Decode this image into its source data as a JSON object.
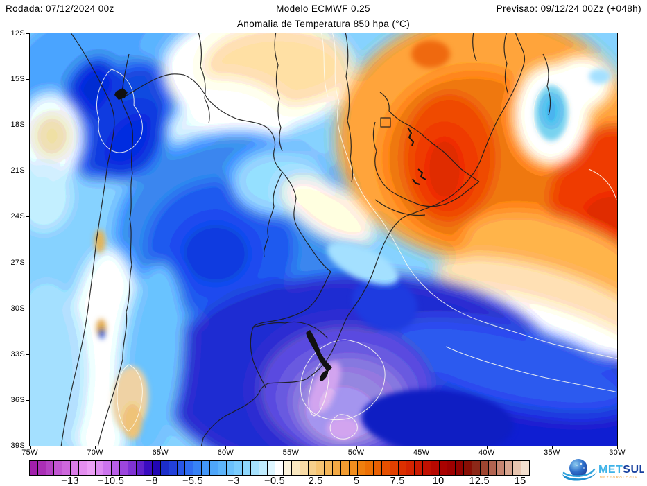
{
  "header": {
    "left": "Rodada: 07/12/2024 00z",
    "center": "Modelo ECMWF 0.25",
    "right": "Previsao: 09/12/24 00Zz (+048h)"
  },
  "title": "Anomalia de Temperatura 850 hpa (°C)",
  "map": {
    "projection": "lat-lon grid, 12S-39S / 75W-30W",
    "lat_labels": [
      "12S",
      "15S",
      "18S",
      "21S",
      "24S",
      "27S",
      "30S",
      "33S",
      "36S",
      "39S"
    ],
    "lon_labels": [
      "75W",
      "70W",
      "65W",
      "60W",
      "55W",
      "50W",
      "45W",
      "40W",
      "35W",
      "30W"
    ],
    "base_color": "#86CCF5",
    "field_blobs": [
      [
        1,
        120,
        80,
        155,
        115,
        0,
        "#4AA0F2"
      ],
      [
        1,
        215,
        22,
        60,
        45,
        0,
        "#5FB0F4"
      ],
      [
        1,
        130,
        125,
        58,
        95,
        38,
        "#1B48E0"
      ],
      [
        1,
        88,
        80,
        30,
        46,
        30,
        "#0A2CD4"
      ],
      [
        1,
        145,
        158,
        40,
        56,
        35,
        "#0E34D8"
      ],
      [
        1,
        245,
        140,
        48,
        36,
        0,
        "#D8F0FC"
      ],
      [
        1,
        30,
        150,
        50,
        66,
        0,
        "#EEF8FD"
      ],
      [
        1,
        32,
        148,
        26,
        31,
        0,
        "#EFD7A6"
      ],
      [
        1,
        20,
        235,
        40,
        50,
        0,
        "#C6EAFB"
      ],
      [
        1,
        330,
        55,
        140,
        86,
        0,
        "#FDFAF2"
      ],
      [
        1,
        358,
        48,
        105,
        56,
        0,
        "#F2D9A8"
      ],
      [
        1,
        300,
        112,
        82,
        46,
        15,
        "#FDFAF2"
      ],
      [
        1,
        660,
        150,
        218,
        178,
        0,
        "#F4A03C"
      ],
      [
        1,
        640,
        180,
        132,
        126,
        0,
        "#F07B14"
      ],
      [
        1,
        605,
        180,
        66,
        92,
        0,
        "#E9480A"
      ],
      [
        1,
        598,
        196,
        36,
        56,
        0,
        "#E23305"
      ],
      [
        1,
        836,
        245,
        86,
        112,
        10,
        "#E83F08"
      ],
      [
        1,
        840,
        276,
        50,
        46,
        0,
        "#E02E04"
      ],
      [
        1,
        760,
        330,
        142,
        66,
        17,
        "#F5AD4E"
      ],
      [
        1,
        745,
        388,
        166,
        50,
        17,
        "#F6DDB4"
      ],
      [
        1,
        725,
        430,
        176,
        42,
        16,
        "#FEFEFC"
      ],
      [
        1,
        300,
        295,
        178,
        152,
        0,
        "#3B8CF0"
      ],
      [
        1,
        275,
        310,
        106,
        96,
        0,
        "#2458E8"
      ],
      [
        1,
        268,
        318,
        60,
        56,
        0,
        "#1A46E2"
      ],
      [
        1,
        360,
        215,
        70,
        50,
        0,
        "#9AD6F8"
      ],
      [
        1,
        430,
        256,
        76,
        38,
        32,
        "#FBF2E2"
      ],
      [
        1,
        480,
        500,
        290,
        152,
        0,
        "#2A2ECC"
      ],
      [
        1,
        760,
        556,
        192,
        96,
        0,
        "#1C24CE"
      ],
      [
        1,
        690,
        480,
        190,
        60,
        14,
        "#2C55E6"
      ],
      [
        1,
        455,
        515,
        126,
        96,
        0,
        "#6354D6"
      ],
      [
        1,
        460,
        530,
        86,
        66,
        0,
        "#8F7FE0"
      ],
      [
        1,
        448,
        552,
        56,
        46,
        0,
        "#A795E4"
      ],
      [
        1,
        108,
        470,
        56,
        162,
        3,
        "#F7FBFE"
      ],
      [
        1,
        25,
        490,
        56,
        132,
        0,
        "#A8DCF8"
      ],
      [
        1,
        178,
        470,
        46,
        142,
        5,
        "#6FC0F5"
      ],
      [
        1,
        752,
        118,
        56,
        74,
        0,
        "#FEFEFA"
      ],
      [
        1,
        795,
        72,
        46,
        40,
        0,
        "#FEFEFA"
      ],
      [
        2,
        752,
        115,
        24,
        40,
        0,
        "#74C8EE"
      ],
      [
        2,
        752,
        112,
        13,
        22,
        0,
        "#4FB8EA"
      ],
      [
        2,
        822,
        62,
        16,
        11,
        0,
        "#A8DFF4"
      ],
      [
        2,
        425,
        512,
        17,
        42,
        25,
        "#CBA0E6"
      ],
      [
        2,
        452,
        570,
        24,
        17,
        0,
        "#CBA0E6"
      ],
      [
        2,
        428,
        528,
        8,
        18,
        25,
        "#DDB8EE"
      ],
      [
        2,
        101,
        300,
        8,
        17,
        0,
        "#E2AE62"
      ],
      [
        2,
        103,
        425,
        7,
        13,
        0,
        "#D9A14E"
      ],
      [
        2,
        104,
        434,
        4,
        7,
        0,
        "#2E52D0"
      ],
      [
        2,
        145,
        528,
        26,
        48,
        4,
        "#EBD2A0"
      ],
      [
        2,
        148,
        560,
        14,
        26,
        0,
        "#E3BC7A"
      ],
      [
        2,
        588,
        560,
        110,
        46,
        4,
        "#1A20C4"
      ],
      [
        2,
        512,
        390,
        48,
        38,
        20,
        "#2544DE"
      ],
      [
        2,
        578,
        30,
        28,
        20,
        0,
        "#EF6E10"
      ],
      [
        2,
        480,
        332,
        56,
        22,
        25,
        "#9FDAF9"
      ]
    ]
  },
  "colorbar": {
    "unit": "°C",
    "segment_values": "0.5°C steps from -15.5 to 15.5 (single white band -0.5 to 0.5)",
    "colors": [
      "#A21FAC",
      "#AA2EB6",
      "#B542C4",
      "#C256D2",
      "#CE68DC",
      "#DA7CE8",
      "#E48EF0",
      "#EC9FF6",
      "#DE8BF2",
      "#CC74EE",
      "#B95EE8",
      "#9C46DE",
      "#7F32D4",
      "#6122CC",
      "#3A0CC0",
      "#2206B4",
      "#1C2ECA",
      "#2240DA",
      "#2856E8",
      "#2F6CF2",
      "#3782F6",
      "#4296F8",
      "#4EA6FA",
      "#5CB4FB",
      "#6AC0FC",
      "#7ACCFD",
      "#8ED8FD",
      "#A6E2FE",
      "#C0ECFE",
      "#DEF6FF",
      "#FFFFFF",
      "#FCF3DC",
      "#FAE8C0",
      "#F9DCA6",
      "#F7D08C",
      "#F6C472",
      "#F5B75A",
      "#F4AA44",
      "#F29C30",
      "#F18E1E",
      "#EF7F0E",
      "#ED7004",
      "#EA6002",
      "#E65000",
      "#E24000",
      "#DC3000",
      "#D42400",
      "#CB1A00",
      "#C11000",
      "#B60800",
      "#AA0200",
      "#9E0000",
      "#920200",
      "#880E04",
      "#8C2818",
      "#9E4530",
      "#B26350",
      "#C68470",
      "#D8A590",
      "#E8C5B0",
      "#F3DFCE"
    ],
    "tick_labels": [
      "−13",
      "−10.5",
      "−8",
      "−5.5",
      "−3",
      "−0.5",
      "2.5",
      "5",
      "7.5",
      "10",
      "12.5",
      "15"
    ],
    "tick_boundaries": [
      5,
      10,
      15,
      20,
      25,
      30,
      35,
      40,
      45,
      50,
      55,
      60
    ]
  },
  "logo": {
    "met": "MET",
    "sul": "SUL",
    "sub": "METEOROLOGIA",
    "met_color": "#3FB3E8",
    "sul_color": "#173F9E",
    "sub_color": "#F2A13C"
  }
}
